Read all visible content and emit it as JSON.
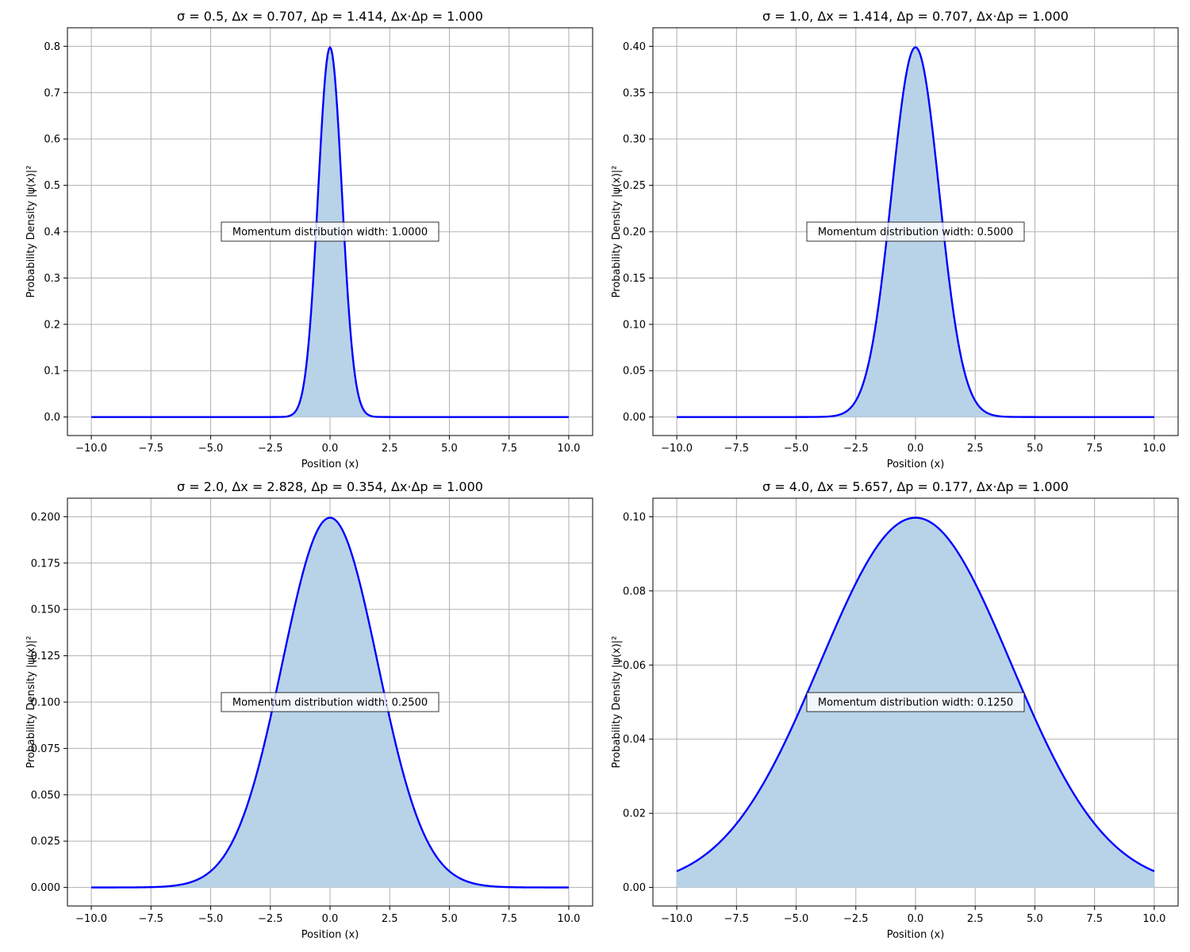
{
  "colors": {
    "line": "#0000ff",
    "fill": "#b8d3e8",
    "grid": "#b0b0b0"
  },
  "chart_data": [
    {
      "type": "area",
      "title": "σ = 0.5, Δx = 0.707, Δp = 1.414, Δx·Δp = 1.000",
      "xlabel": "Position (x)",
      "ylabel": "Probability Density |ψ(x)|²",
      "sigma": 0.5,
      "xlim": [
        -11,
        11
      ],
      "ylim": [
        -0.04,
        0.84
      ],
      "x_ticks": [
        -10,
        -7.5,
        -5,
        -2.5,
        0,
        2.5,
        5,
        7.5,
        10
      ],
      "x_tick_labels": [
        "−10.0",
        "−7.5",
        "−5.0",
        "−2.5",
        "0.0",
        "2.5",
        "5.0",
        "7.5",
        "10.0"
      ],
      "y_ticks": [
        0,
        0.1,
        0.2,
        0.3,
        0.4,
        0.5,
        0.6,
        0.7,
        0.8
      ],
      "y_tick_labels": [
        "0.0",
        "0.1",
        "0.2",
        "0.3",
        "0.4",
        "0.5",
        "0.6",
        "0.7",
        "0.8"
      ],
      "grid": true,
      "annotation": {
        "text": "Momentum distribution width: 1.0000",
        "x": 0,
        "y": 0.4
      }
    },
    {
      "type": "area",
      "title": "σ = 1.0, Δx = 1.414, Δp = 0.707, Δx·Δp = 1.000",
      "xlabel": "Position (x)",
      "ylabel": "Probability Density |ψ(x)|²",
      "sigma": 1.0,
      "xlim": [
        -11,
        11
      ],
      "ylim": [
        -0.02,
        0.42
      ],
      "x_ticks": [
        -10,
        -7.5,
        -5,
        -2.5,
        0,
        2.5,
        5,
        7.5,
        10
      ],
      "x_tick_labels": [
        "−10.0",
        "−7.5",
        "−5.0",
        "−2.5",
        "0.0",
        "2.5",
        "5.0",
        "7.5",
        "10.0"
      ],
      "y_ticks": [
        0,
        0.05,
        0.1,
        0.15,
        0.2,
        0.25,
        0.3,
        0.35,
        0.4
      ],
      "y_tick_labels": [
        "0.00",
        "0.05",
        "0.10",
        "0.15",
        "0.20",
        "0.25",
        "0.30",
        "0.35",
        "0.40"
      ],
      "grid": true,
      "annotation": {
        "text": "Momentum distribution width: 0.5000",
        "x": 0,
        "y": 0.2
      }
    },
    {
      "type": "area",
      "title": "σ = 2.0, Δx = 2.828, Δp = 0.354, Δx·Δp = 1.000",
      "xlabel": "Position (x)",
      "ylabel": "Probability Density |ψ(x)|²",
      "sigma": 2.0,
      "xlim": [
        -11,
        11
      ],
      "ylim": [
        -0.01,
        0.21
      ],
      "x_ticks": [
        -10,
        -7.5,
        -5,
        -2.5,
        0,
        2.5,
        5,
        7.5,
        10
      ],
      "x_tick_labels": [
        "−10.0",
        "−7.5",
        "−5.0",
        "−2.5",
        "0.0",
        "2.5",
        "5.0",
        "7.5",
        "10.0"
      ],
      "y_ticks": [
        0,
        0.025,
        0.05,
        0.075,
        0.1,
        0.125,
        0.15,
        0.175,
        0.2
      ],
      "y_tick_labels": [
        "0.000",
        "0.025",
        "0.050",
        "0.075",
        "0.100",
        "0.125",
        "0.150",
        "0.175",
        "0.200"
      ],
      "grid": true,
      "annotation": {
        "text": "Momentum distribution width: 0.2500",
        "x": 0,
        "y": 0.1
      }
    },
    {
      "type": "area",
      "title": "σ = 4.0, Δx = 5.657, Δp = 0.177, Δx·Δp = 1.000",
      "xlabel": "Position (x)",
      "ylabel": "Probability Density |ψ(x)|²",
      "sigma": 4.0,
      "xlim": [
        -11,
        11
      ],
      "ylim": [
        -0.005,
        0.105
      ],
      "x_ticks": [
        -10,
        -7.5,
        -5,
        -2.5,
        0,
        2.5,
        5,
        7.5,
        10
      ],
      "x_tick_labels": [
        "−10.0",
        "−7.5",
        "−5.0",
        "−2.5",
        "0.0",
        "2.5",
        "5.0",
        "7.5",
        "10.0"
      ],
      "y_ticks": [
        0,
        0.02,
        0.04,
        0.06,
        0.08,
        0.1
      ],
      "y_tick_labels": [
        "0.00",
        "0.02",
        "0.04",
        "0.06",
        "0.08",
        "0.10"
      ],
      "grid": true,
      "annotation": {
        "text": "Momentum distribution width: 0.1250",
        "x": 0,
        "y": 0.05
      }
    }
  ]
}
